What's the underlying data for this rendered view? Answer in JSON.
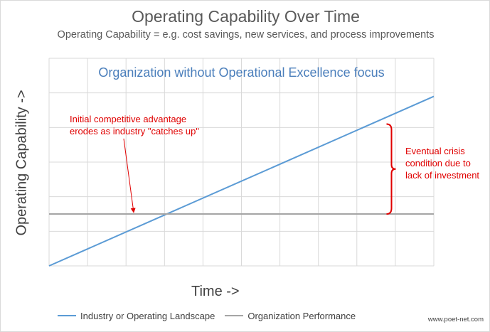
{
  "chart_data": {
    "type": "line",
    "title": "Operating Capability Over Time",
    "subtitle": "Operating Capability = e.g. cost savings, new services, and process improvements",
    "plot_title": "Organization without Operational Excellence focus",
    "xlabel": "Time ->",
    "ylabel": "Operating Capability ->",
    "xlim": [
      0,
      10
    ],
    "ylim": [
      0,
      6
    ],
    "grid": {
      "vertical": true,
      "horizontal": true
    },
    "legend_position": "bottom-left",
    "series": [
      {
        "name": "Industry or Operating Landscape",
        "color": "#5b9bd5",
        "x": [
          0,
          10
        ],
        "y": [
          0,
          4.9
        ]
      },
      {
        "name": "Organization Performance",
        "color": "#a5a5a5",
        "x": [
          0,
          10
        ],
        "y": [
          1.5,
          1.5
        ]
      }
    ],
    "annotations": [
      {
        "text": "Initial competitive advantage erodes as industry \"catches up\"",
        "color": "#e00000"
      },
      {
        "text": "Eventual crisis condition due to lack of investment",
        "color": "#e00000",
        "bracket_x": 8.9,
        "bracket_y": [
          1.5,
          4.1
        ]
      }
    ],
    "arrow_target": {
      "x": 2.2,
      "y": 1.5
    },
    "watermark": "www.poet-net.com"
  }
}
